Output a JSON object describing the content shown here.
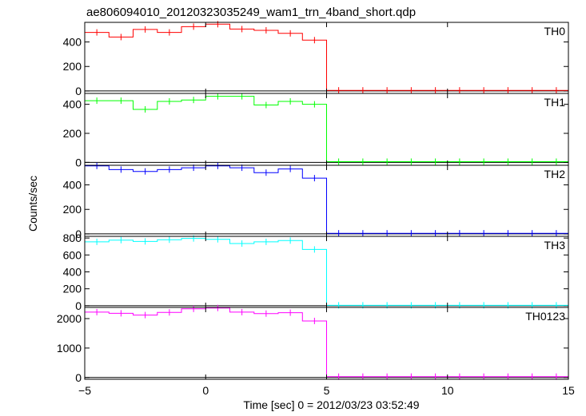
{
  "chart_data": {
    "type": "line",
    "title": "ae806094010_20120323035249_wam1_trn_4band_short.qdp",
    "xlabel": "Time [sec] 0 = 2012/03/23 03:52:49",
    "ylabel": "Counts/sec",
    "xlim": [
      -5,
      15
    ],
    "x_ticks": [
      "−5",
      "0",
      "5",
      "10",
      "15"
    ],
    "x": [
      -4.5,
      -3.5,
      -2.5,
      -1.5,
      -0.5,
      0.5,
      1.5,
      2.5,
      3.5,
      4.5,
      5.5,
      6.5,
      7.5,
      8.5,
      9.5,
      10.5,
      11.5,
      12.5,
      13.5,
      14.5
    ],
    "bin_width": 1,
    "panels": [
      {
        "name": "TH0",
        "color": "#ff0000",
        "ylim": [
          -20,
          560
        ],
        "yticks": [
          0,
          200,
          400
        ],
        "values": [
          478,
          440,
          502,
          478,
          525,
          545,
          505,
          495,
          470,
          415,
          5,
          5,
          5,
          5,
          5,
          5,
          5,
          5,
          5,
          5
        ]
      },
      {
        "name": "TH1",
        "color": "#00ff00",
        "ylim": [
          -20,
          475
        ],
        "yticks": [
          0,
          200,
          400
        ],
        "values": [
          425,
          425,
          365,
          420,
          430,
          455,
          455,
          395,
          420,
          400,
          5,
          5,
          5,
          5,
          5,
          5,
          5,
          5,
          5,
          5
        ]
      },
      {
        "name": "TH2",
        "color": "#0000ff",
        "ylim": [
          -20,
          560
        ],
        "yticks": [
          0,
          200,
          400
        ],
        "values": [
          555,
          525,
          510,
          525,
          540,
          555,
          540,
          500,
          530,
          455,
          5,
          5,
          5,
          5,
          5,
          5,
          5,
          5,
          5,
          5
        ]
      },
      {
        "name": "TH3",
        "color": "#00ffff",
        "ylim": [
          -20,
          820
        ],
        "yticks": [
          0,
          200,
          400,
          600,
          800
        ],
        "values": [
          755,
          775,
          760,
          780,
          795,
          785,
          735,
          755,
          770,
          665,
          5,
          5,
          5,
          5,
          5,
          5,
          5,
          5,
          5,
          5
        ]
      },
      {
        "name": "TH0123",
        "color": "#ff00ff",
        "ylim": [
          -60,
          2380
        ],
        "yticks": [
          0,
          1000,
          2000
        ],
        "values": [
          2220,
          2180,
          2120,
          2210,
          2330,
          2360,
          2220,
          2170,
          2200,
          1920,
          30,
          30,
          30,
          30,
          30,
          30,
          30,
          30,
          30,
          30
        ]
      }
    ]
  }
}
